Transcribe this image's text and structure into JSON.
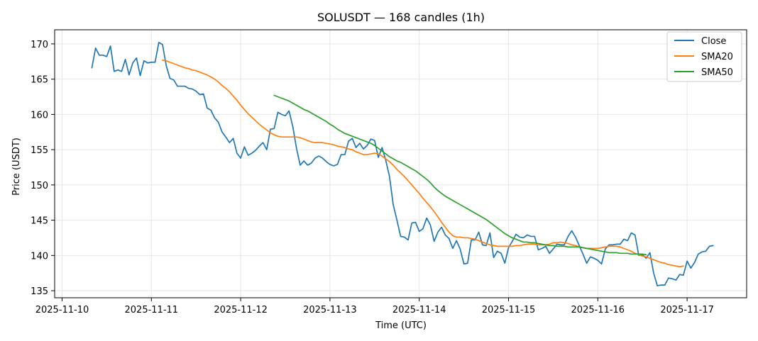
{
  "chart_data": {
    "type": "line",
    "title": "SOLUSDT — 168 candles (1h)",
    "xlabel": "Time (UTC)",
    "ylabel": "Price (USDT)",
    "x_start": "2025-11-10T08:00",
    "x_step_hours": 1,
    "xlim": [
      "2025-11-09T22:00",
      "2025-11-17T16:00"
    ],
    "ylim": [
      134,
      172
    ],
    "x_ticks": [
      "2025-11-10",
      "2025-11-11",
      "2025-11-12",
      "2025-11-13",
      "2025-11-14",
      "2025-11-15",
      "2025-11-16",
      "2025-11-17"
    ],
    "y_ticks": [
      135,
      140,
      145,
      150,
      155,
      160,
      165,
      170
    ],
    "grid": true,
    "legend_position": "top-right",
    "colors": {
      "close": "#1f77b4",
      "sma20": "#ff7f0e",
      "sma50": "#2ca02c",
      "grid": "#e6e6e6",
      "axes": "#000000"
    },
    "series": [
      {
        "name": "Close",
        "offset": 0,
        "values": [
          166.6,
          169.4,
          168.4,
          168.4,
          168.2,
          169.7,
          166.1,
          166.3,
          166.1,
          167.8,
          165.6,
          167.3,
          168.0,
          165.5,
          167.6,
          167.3,
          167.4,
          167.4,
          170.2,
          169.9,
          166.9,
          165.1,
          164.9,
          164.0,
          164.0,
          164.0,
          163.7,
          163.6,
          163.3,
          162.8,
          162.9,
          160.9,
          160.6,
          159.5,
          158.9,
          157.5,
          156.8,
          156.0,
          156.6,
          154.5,
          153.8,
          155.4,
          154.2,
          154.5,
          154.9,
          155.5,
          156.0,
          155.0,
          157.9,
          158.0,
          160.3,
          160.0,
          159.8,
          160.5,
          158.3,
          155.2,
          152.8,
          153.4,
          152.8,
          153.1,
          153.8,
          154.1,
          153.8,
          153.3,
          152.9,
          152.7,
          152.9,
          154.3,
          154.3,
          156.2,
          156.6,
          155.3,
          155.9,
          155.1,
          155.6,
          156.5,
          156.3,
          153.9,
          155.3,
          153.5,
          151.2,
          147.2,
          145.0,
          142.7,
          142.6,
          142.2,
          144.6,
          144.7,
          143.4,
          143.8,
          145.3,
          144.3,
          142.0,
          143.3,
          144.0,
          142.9,
          142.4,
          141.0,
          142.1,
          140.9,
          138.8,
          138.9,
          142.2,
          142.2,
          143.3,
          141.5,
          141.4,
          143.2,
          139.7,
          140.6,
          140.3,
          138.9,
          141.1,
          142.0,
          143.0,
          142.6,
          142.5,
          142.9,
          142.7,
          142.7,
          140.8,
          141.0,
          141.3,
          140.3,
          140.9,
          141.6,
          141.5,
          141.5,
          142.7,
          143.5,
          142.6,
          141.4,
          140.2,
          138.9,
          139.8,
          139.6,
          139.3,
          138.8,
          140.9,
          141.5,
          141.5,
          141.6,
          141.6,
          142.3,
          142.1,
          143.2,
          142.9,
          140.0,
          140.1,
          139.6,
          140.4,
          137.5,
          135.7,
          135.8,
          135.8,
          136.8,
          136.7,
          136.5,
          137.3,
          137.2,
          139.2,
          138.2,
          139.0,
          140.2,
          140.5,
          140.6,
          141.3,
          141.4
        ]
      },
      {
        "name": "SMA20",
        "offset": 19,
        "values": [
          167.7,
          167.6,
          167.4,
          167.2,
          167.0,
          166.8,
          166.6,
          166.5,
          166.3,
          166.2,
          166.0,
          165.8,
          165.6,
          165.3,
          165.0,
          164.6,
          164.1,
          163.7,
          163.2,
          162.6,
          162.0,
          161.3,
          160.7,
          160.1,
          159.6,
          159.1,
          158.6,
          158.2,
          157.8,
          157.4,
          157.1,
          156.9,
          156.8,
          156.8,
          156.8,
          156.8,
          156.8,
          156.7,
          156.5,
          156.3,
          156.1,
          156.0,
          156.0,
          156.0,
          155.9,
          155.8,
          155.7,
          155.5,
          155.4,
          155.3,
          155.1,
          155.0,
          154.7,
          154.5,
          154.3,
          154.3,
          154.4,
          154.5,
          154.4,
          154.1,
          153.7,
          153.3,
          152.8,
          152.2,
          151.7,
          151.2,
          150.6,
          150.0,
          149.4,
          148.8,
          148.1,
          147.5,
          146.9,
          146.2,
          145.5,
          144.7,
          144.0,
          143.3,
          142.8,
          142.6,
          142.6,
          142.5,
          142.5,
          142.4,
          142.3,
          142.1,
          141.9,
          141.7,
          141.5,
          141.4,
          141.3,
          141.3,
          141.3,
          141.3,
          141.3,
          141.4,
          141.4,
          141.5,
          141.6,
          141.6,
          141.6,
          141.5,
          141.5,
          141.5,
          141.6,
          141.8,
          141.8,
          141.9,
          141.8,
          141.7,
          141.5,
          141.4,
          141.2,
          141.1,
          141.0,
          141.0,
          141.0,
          141.0,
          141.1,
          141.2,
          141.3,
          141.3,
          141.3,
          141.2,
          141.0,
          140.8,
          140.6,
          140.3,
          140.1,
          139.9,
          139.8,
          139.6,
          139.4,
          139.2,
          139.0,
          138.9,
          138.7,
          138.6,
          138.5,
          138.4,
          138.5
        ]
      },
      {
        "name": "SMA50",
        "offset": 49,
        "values": [
          162.7,
          162.5,
          162.3,
          162.1,
          161.9,
          161.6,
          161.3,
          161.0,
          160.7,
          160.5,
          160.2,
          159.9,
          159.6,
          159.3,
          159.0,
          158.6,
          158.3,
          157.9,
          157.6,
          157.3,
          157.1,
          156.9,
          156.7,
          156.5,
          156.3,
          156.1,
          155.9,
          155.6,
          155.2,
          154.8,
          154.4,
          154.0,
          153.7,
          153.4,
          153.2,
          152.9,
          152.6,
          152.3,
          152.0,
          151.6,
          151.2,
          150.8,
          150.3,
          149.7,
          149.2,
          148.8,
          148.4,
          148.1,
          147.8,
          147.5,
          147.2,
          146.9,
          146.6,
          146.3,
          146.0,
          145.7,
          145.4,
          145.1,
          144.7,
          144.3,
          143.9,
          143.5,
          143.1,
          142.8,
          142.5,
          142.3,
          142.1,
          141.9,
          141.9,
          141.8,
          141.8,
          141.7,
          141.6,
          141.5,
          141.4,
          141.4,
          141.3,
          141.3,
          141.3,
          141.2,
          141.2,
          141.2,
          141.2,
          141.1,
          141.0,
          140.9,
          140.8,
          140.7,
          140.6,
          140.5,
          140.4,
          140.4,
          140.4,
          140.3,
          140.3,
          140.3,
          140.2,
          140.2,
          140.2,
          140.2,
          140.1
        ]
      }
    ]
  }
}
